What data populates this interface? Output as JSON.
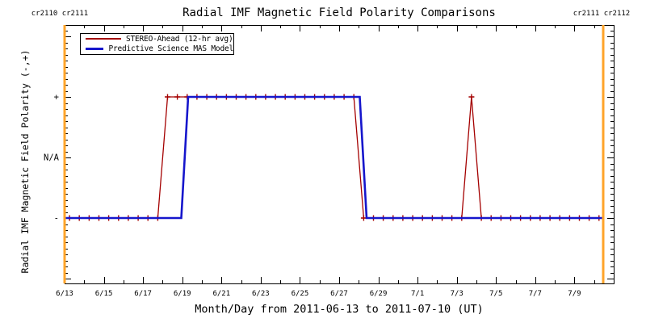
{
  "title": "Radial IMF Magnetic Field Polarity Comparisons",
  "annotations": {
    "top_left": "cr2110 cr2111",
    "top_right": "cr2111 cr2112"
  },
  "axes": {
    "x_label": "Month/Day from 2011-06-13 to 2011-07-10 (UT)",
    "y_label": "Radial IMF Magnetic Field Polarity (-,+)",
    "x_tick_labels": [
      "6/13",
      "6/15",
      "6/17",
      "6/19",
      "6/21",
      "6/23",
      "6/25",
      "6/27",
      "6/29",
      "7/1",
      "7/3",
      "7/5",
      "7/7",
      "7/9"
    ],
    "y_tick_labels": [
      "+",
      "N/A",
      "-"
    ]
  },
  "legend": {
    "entries": [
      {
        "label": "STEREO-Ahead (12-hr avg)",
        "color": "#a40000",
        "thickness": 2.5
      },
      {
        "label": "Predictive Science MAS Model",
        "color": "#1616cc",
        "thickness": 3
      }
    ]
  },
  "colors": {
    "background": "#ffffff",
    "axis": "#000000",
    "stereo_red": "#a40000",
    "model_blue": "#1616cc",
    "cr_orange": "#ffa42a"
  },
  "chart_data": {
    "type": "line",
    "title": "Radial IMF Magnetic Field Polarity Comparisons",
    "xlabel": "Month/Day from 2011-06-13 to 2011-07-10 (UT)",
    "ylabel": "Radial IMF Magnetic Field Polarity (-,+)",
    "x_unit": "days since 2011-06-13 00:00 UT",
    "x_range_days": [
      0,
      28
    ],
    "x_major_tick_step_days": 2,
    "x_minor_tick_step_days": 1,
    "y_value_range": [
      -2.19,
      2.19
    ],
    "y_ticks": [
      {
        "value": 1,
        "label": "+"
      },
      {
        "value": 0,
        "label": "N/A"
      },
      {
        "value": -1,
        "label": "-"
      }
    ],
    "y_minor_tick_step": 0.1,
    "grid": false,
    "legend_position": "top-left-inside",
    "series": [
      {
        "name": "STEREO-Ahead (12-hr avg)",
        "color": "#a40000",
        "line_width": 1.3,
        "marker": "plus",
        "marker_start_day": 0.25,
        "marker_interval_days": 0.5,
        "marker_end_day": 27.25,
        "points": [
          [
            0.25,
            -1
          ],
          [
            4.75,
            -1
          ],
          [
            5.25,
            1
          ],
          [
            14.75,
            1
          ],
          [
            15.25,
            -1
          ],
          [
            20.25,
            -1
          ],
          [
            20.75,
            1
          ],
          [
            21.25,
            -1
          ],
          [
            27.25,
            -1
          ],
          [
            27.45,
            -1
          ]
        ]
      },
      {
        "name": "Predictive Science MAS Model",
        "color": "#1616cc",
        "line_width": 2.6,
        "marker": "none",
        "points": [
          [
            0,
            -1
          ],
          [
            5.95,
            -1
          ],
          [
            6.3,
            1
          ],
          [
            15.05,
            1
          ],
          [
            15.4,
            -1
          ],
          [
            27.46,
            -1
          ]
        ]
      }
    ],
    "event_lines": [
      {
        "label": "cr2110 cr2111",
        "day": 0,
        "color": "#ffa42a"
      },
      {
        "label": "cr2111 cr2112",
        "day": 27.46,
        "color": "#ffa42a"
      }
    ]
  }
}
